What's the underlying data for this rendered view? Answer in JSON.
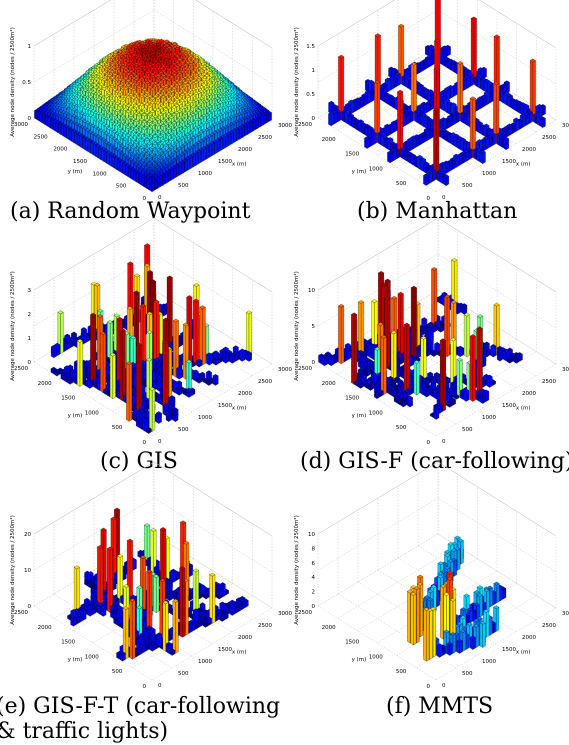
{
  "figure": {
    "panels": [
      {
        "id": "a",
        "caption": "(a) Random Waypoint",
        "chart_data": {
          "type": "bar3d",
          "pattern": "uniform-dense",
          "xlabel": "x (m)",
          "ylabel": "y (m)",
          "zlabel": "Average node density (nodes / 2500m²)",
          "xticks": [
            "0",
            "500",
            "1000",
            "1500",
            "2000",
            "2500",
            "3000"
          ],
          "yticks": [
            "0",
            "500",
            "1000",
            "1500",
            "2000",
            "2500",
            "3000"
          ],
          "zticks": [
            "0",
            "0.5",
            "1"
          ],
          "xlim": [
            0,
            3000
          ],
          "ylim": [
            0,
            3000
          ],
          "zlim": [
            0,
            1
          ],
          "colormap": "jet"
        }
      },
      {
        "id": "b",
        "caption": "(b) Manhattan",
        "chart_data": {
          "type": "bar3d",
          "pattern": "grid-streets",
          "xlabel": "x (m)",
          "ylabel": "y (m)",
          "zlabel": "Average node density (nodes / 2500m²)",
          "xticks": [
            "0",
            "500",
            "1000",
            "1500",
            "2000",
            "2500",
            "3000"
          ],
          "yticks": [
            "0",
            "500",
            "1000",
            "1500",
            "2000",
            "2500"
          ],
          "zticks": [
            "0",
            "0.5",
            "1",
            "1.5"
          ],
          "xlim": [
            0,
            3000
          ],
          "ylim": [
            0,
            2500
          ],
          "zlim": [
            0,
            1.5
          ],
          "colormap": "jet"
        }
      },
      {
        "id": "c",
        "caption": "(c) GIS",
        "chart_data": {
          "type": "bar3d",
          "pattern": "road-network",
          "xlabel": "x (m)",
          "ylabel": "y (m)",
          "zlabel": "Average node density (nodes / 2500m²)",
          "xticks": [
            "0",
            "500",
            "1000",
            "1500",
            "2000",
            "2500",
            "3000"
          ],
          "yticks": [
            "0",
            "500",
            "1000",
            "1500",
            "2000",
            "2500"
          ],
          "zticks": [
            "0",
            "1",
            "2",
            "3"
          ],
          "xlim": [
            0,
            3000
          ],
          "ylim": [
            0,
            2500
          ],
          "zlim": [
            0,
            3
          ],
          "colormap": "jet"
        }
      },
      {
        "id": "d",
        "caption": "(d) GIS-F (car-following)",
        "chart_data": {
          "type": "bar3d",
          "pattern": "road-network",
          "xlabel": "x (m)",
          "ylabel": "y (m)",
          "zlabel": "Average node density (nodes / 2500m²)",
          "xticks": [
            "0",
            "500",
            "1000",
            "1500",
            "2000",
            "2500",
            "3000"
          ],
          "yticks": [
            "0",
            "500",
            "1000",
            "1500",
            "2000",
            "2500"
          ],
          "zticks": [
            "0",
            "5",
            "10"
          ],
          "xlim": [
            0,
            3000
          ],
          "ylim": [
            0,
            2500
          ],
          "zlim": [
            0,
            10
          ],
          "colormap": "jet"
        }
      },
      {
        "id": "e",
        "caption": "(e) GIS-F-T (car-following & traffic lights)",
        "caption_lines": [
          "(e) GIS-F-T (car-following",
          "& traffic lights)"
        ],
        "chart_data": {
          "type": "bar3d",
          "pattern": "road-network",
          "xlabel": "x (m)",
          "ylabel": "y (m)",
          "zlabel": "Average node density (nodes / 2500m²)",
          "xticks": [
            "0",
            "500",
            "1000",
            "1500",
            "2000",
            "2500",
            "3000"
          ],
          "yticks": [
            "0",
            "500",
            "1000",
            "1500",
            "2000",
            "2500"
          ],
          "zticks": [
            "0",
            "10",
            "20"
          ],
          "xlim": [
            0,
            3000
          ],
          "ylim": [
            0,
            2500
          ],
          "zlim": [
            0,
            20
          ],
          "colormap": "jet"
        }
      },
      {
        "id": "f",
        "caption": "(f) MMTS",
        "chart_data": {
          "type": "bar3d",
          "pattern": "tram-lines",
          "xlabel": "x (m)",
          "ylabel": "y (m)",
          "zlabel": "Average node density (nodes / 2500m²)",
          "xticks": [
            "0",
            "500",
            "1000",
            "1500",
            "2000",
            "2500",
            "3000"
          ],
          "yticks": [
            "0",
            "500",
            "1000",
            "1500",
            "2000",
            "2500"
          ],
          "zticks": [
            "0",
            "2",
            "4",
            "6",
            "8",
            "10"
          ],
          "xlim": [
            0,
            3000
          ],
          "ylim": [
            0,
            2500
          ],
          "zlim": [
            0,
            10
          ],
          "colormap": "jet"
        }
      }
    ]
  }
}
